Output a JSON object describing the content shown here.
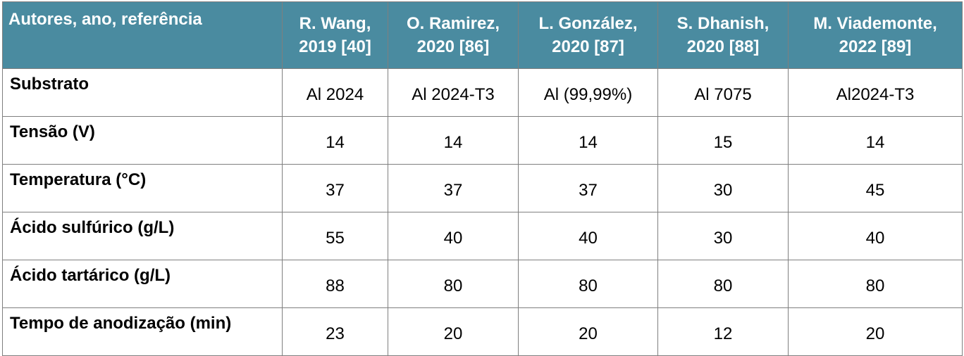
{
  "header": {
    "first": "Autores, ano, referência",
    "authors": [
      {
        "name": "R. Wang,",
        "ref": "2019 [40]"
      },
      {
        "name": "O. Ramirez,",
        "ref": "2020 [86]"
      },
      {
        "name": "L. González,",
        "ref": "2020 [87]"
      },
      {
        "name": "S. Dhanish,",
        "ref": "2020 [88]"
      },
      {
        "name": "M. Viademonte,",
        "ref": "2022 [89]"
      }
    ]
  },
  "rows": [
    {
      "label": "Substrato",
      "values": [
        "Al 2024",
        "Al 2024-T3",
        "Al (99,99%)",
        "Al 7075",
        "Al2024-T3"
      ]
    },
    {
      "label": "Tensão (V)",
      "values": [
        "14",
        "14",
        "14",
        "15",
        "14"
      ]
    },
    {
      "label": "Temperatura (°C)",
      "values": [
        "37",
        "37",
        "37",
        "30",
        "45"
      ]
    },
    {
      "label": "Ácido sulfúrico (g/L)",
      "values": [
        "55",
        "40",
        "40",
        "30",
        "40"
      ]
    },
    {
      "label": "Ácido tartárico (g/L)",
      "values": [
        "88",
        "80",
        "80",
        "80",
        "80"
      ]
    },
    {
      "label": "Tempo de anodização (min)",
      "values": [
        "23",
        "20",
        "20",
        "12",
        "20"
      ]
    }
  ],
  "colors": {
    "header_bg": "#4a8ba0",
    "header_text": "#ffffff",
    "border": "#7f7f7f"
  }
}
